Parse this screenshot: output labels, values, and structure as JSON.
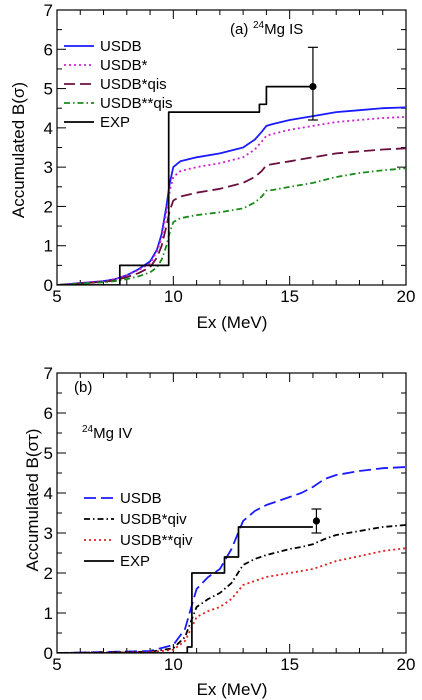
{
  "chart_data": [
    {
      "type": "line",
      "panel_label": "(a)",
      "annotation": {
        "sup": "24",
        "main": "Mg  IS"
      },
      "xlabel": "Ex (MeV)",
      "ylabel": "Accumulated B(σ)",
      "xlim": [
        5,
        20
      ],
      "ylim": [
        0,
        7
      ],
      "xticks": [
        5,
        10,
        15,
        20
      ],
      "yticks": [
        0,
        1,
        2,
        3,
        4,
        5,
        6,
        7
      ],
      "grid": false,
      "legend_position": "top-left",
      "series": [
        {
          "name": "USDB",
          "color": "#1a1aff",
          "dash": "",
          "x": [
            5,
            7,
            7.5,
            8,
            8.5,
            9,
            9.3,
            9.5,
            9.7,
            9.85,
            10,
            10.3,
            11,
            12,
            13,
            13.5,
            13.8,
            14,
            14.3,
            15,
            16,
            17,
            18,
            19,
            20
          ],
          "y": [
            0,
            0.1,
            0.15,
            0.25,
            0.4,
            0.6,
            0.9,
            1.3,
            2.0,
            2.6,
            3.0,
            3.15,
            3.25,
            3.35,
            3.5,
            3.7,
            3.9,
            4.05,
            4.1,
            4.2,
            4.3,
            4.4,
            4.45,
            4.5,
            4.52
          ]
        },
        {
          "name": "USDB*",
          "color": "#d020d0",
          "dash": "2 3",
          "x": [
            5,
            7,
            7.5,
            8,
            8.5,
            9,
            9.3,
            9.5,
            9.7,
            9.85,
            10,
            10.3,
            11,
            12,
            13,
            13.5,
            13.8,
            14,
            14.3,
            15,
            16,
            17,
            18,
            19,
            20
          ],
          "y": [
            0,
            0.1,
            0.15,
            0.25,
            0.38,
            0.55,
            0.85,
            1.2,
            1.85,
            2.4,
            2.75,
            2.9,
            3.0,
            3.1,
            3.25,
            3.45,
            3.65,
            3.8,
            3.85,
            3.95,
            4.05,
            4.15,
            4.2,
            4.25,
            4.28
          ]
        },
        {
          "name": "USDB*qis",
          "color": "#6a1040",
          "dash": "11 5",
          "x": [
            5,
            7,
            7.5,
            8,
            8.5,
            9,
            9.3,
            9.5,
            9.7,
            9.85,
            10,
            10.3,
            11,
            12,
            13,
            13.5,
            13.8,
            14,
            14.3,
            15,
            16,
            17,
            18,
            19,
            20
          ],
          "y": [
            0,
            0.08,
            0.12,
            0.2,
            0.3,
            0.45,
            0.7,
            1.0,
            1.5,
            1.9,
            2.15,
            2.25,
            2.35,
            2.45,
            2.6,
            2.75,
            2.9,
            3.05,
            3.08,
            3.15,
            3.25,
            3.35,
            3.4,
            3.45,
            3.48
          ]
        },
        {
          "name": "USDB**qis",
          "color": "#1a8a1a",
          "dash": "6 3 1.5 3",
          "x": [
            5,
            7,
            7.5,
            8,
            8.5,
            9,
            9.3,
            9.5,
            9.7,
            9.85,
            10,
            10.3,
            11,
            12,
            13,
            13.5,
            13.8,
            14,
            14.3,
            15,
            16,
            17,
            18,
            19,
            20
          ],
          "y": [
            0,
            0.07,
            0.1,
            0.15,
            0.22,
            0.32,
            0.45,
            0.65,
            1.0,
            1.35,
            1.6,
            1.7,
            1.78,
            1.85,
            1.95,
            2.1,
            2.25,
            2.4,
            2.42,
            2.5,
            2.6,
            2.75,
            2.85,
            2.92,
            2.97
          ]
        },
        {
          "name": "EXP",
          "color": "#000000",
          "dash": "",
          "step": true,
          "x": [
            5,
            7.7,
            7.7,
            9.8,
            9.8,
            9.8,
            9.8,
            11.6,
            11.6,
            13.7,
            13.7,
            14.0,
            14.0,
            16.0,
            16.0
          ],
          "y": [
            0,
            0,
            0.5,
            0.5,
            3.8,
            3.8,
            4.4,
            4.4,
            4.4,
            4.4,
            4.6,
            4.6,
            5.05,
            5.05,
            5.05
          ],
          "marker": {
            "x": 16.0,
            "y": 5.05,
            "err_low": 4.2,
            "err_high": 6.05
          }
        }
      ]
    },
    {
      "type": "line",
      "panel_label": "(b)",
      "annotation": {
        "sup": "24",
        "main": "Mg  IV"
      },
      "xlabel": "Ex (MeV)",
      "ylabel": "Accumulated B(στ)",
      "xlim": [
        5,
        20
      ],
      "ylim": [
        0,
        7
      ],
      "xticks": [
        5,
        10,
        15,
        20
      ],
      "yticks": [
        0,
        1,
        2,
        3,
        4,
        5,
        6,
        7
      ],
      "grid": false,
      "legend_position": "middle-left",
      "series": [
        {
          "name": "USDB",
          "color": "#1a1aff",
          "dash": "12 5",
          "x": [
            5,
            9,
            10,
            10.5,
            10.8,
            11,
            11.5,
            12,
            12.5,
            13,
            13.5,
            14,
            15,
            15.5,
            16,
            16.5,
            17,
            18,
            19,
            20
          ],
          "y": [
            0,
            0.05,
            0.2,
            0.6,
            1.2,
            1.6,
            1.9,
            2.1,
            2.6,
            3.3,
            3.55,
            3.7,
            3.9,
            4.0,
            4.15,
            4.35,
            4.45,
            4.55,
            4.62,
            4.65
          ]
        },
        {
          "name": "USDB*qiv",
          "color": "#000000",
          "dash": "6 3 1.5 3",
          "x": [
            5,
            9,
            10,
            10.5,
            10.8,
            11,
            11.5,
            12,
            12.5,
            13,
            13.5,
            14,
            15,
            15.5,
            16,
            16.5,
            17,
            18,
            19,
            20
          ],
          "y": [
            0,
            0.03,
            0.12,
            0.4,
            0.85,
            1.15,
            1.35,
            1.5,
            1.75,
            2.2,
            2.35,
            2.45,
            2.6,
            2.65,
            2.72,
            2.85,
            2.95,
            3.05,
            3.15,
            3.2
          ]
        },
        {
          "name": "USDB**qiv",
          "color": "#e02020",
          "dash": "2 3",
          "x": [
            5,
            9,
            10,
            10.5,
            10.8,
            11,
            11.5,
            12,
            12.5,
            13,
            13.5,
            14,
            15,
            15.5,
            16,
            16.5,
            17,
            18,
            19,
            20
          ],
          "y": [
            0,
            0.02,
            0.08,
            0.3,
            0.65,
            0.9,
            1.05,
            1.15,
            1.35,
            1.7,
            1.8,
            1.9,
            2.0,
            2.05,
            2.1,
            2.2,
            2.3,
            2.42,
            2.55,
            2.62
          ]
        },
        {
          "name": "EXP",
          "color": "#000000",
          "dash": "",
          "step": true,
          "x": [
            5,
            10.6,
            10.6,
            10.8,
            10.8,
            12.2,
            12.2,
            12.8,
            12.8,
            16.0,
            16.0
          ],
          "y": [
            0,
            0,
            0.15,
            0.15,
            2.0,
            2.0,
            2.4,
            2.4,
            3.15,
            3.15,
            3.15
          ],
          "marker": {
            "x": 16.15,
            "y": 3.3,
            "err_low": 3.0,
            "err_high": 3.6
          }
        }
      ]
    }
  ]
}
